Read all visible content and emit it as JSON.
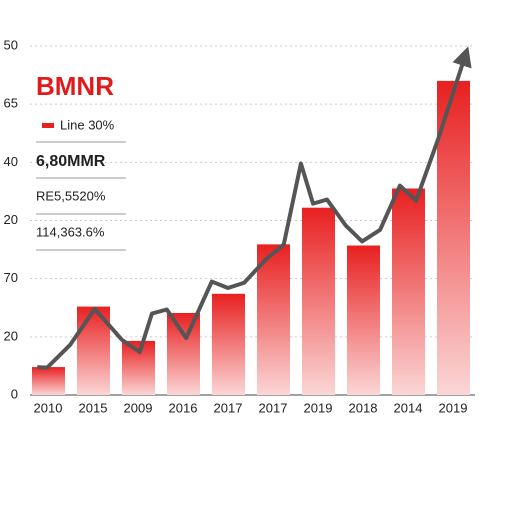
{
  "chart_data": {
    "type": "bar",
    "title": "BMNR",
    "categories": [
      "2010",
      "2015",
      "2009",
      "2016",
      "2017",
      "2017",
      "2019",
      "2018",
      "2014",
      "2019"
    ],
    "series": [
      {
        "name": "Line 30%",
        "color": "#e82020",
        "values": [
          4.8,
          15.2,
          9.3,
          14.1,
          17.4,
          25.9,
          32.2,
          25.7,
          35.5,
          54
        ]
      }
    ],
    "line": {
      "color": "#555555",
      "x": [
        -0.24,
        -0.02,
        0.49,
        1.04,
        1.64,
        2.04,
        2.31,
        2.64,
        3.07,
        3.64,
        4.0,
        4.36,
        4.84,
        5.24,
        5.62,
        5.89,
        6.2,
        6.62,
        6.98,
        7.38,
        7.82,
        8.18,
        8.67,
        9.27
      ],
      "values": [
        4.8,
        4.7,
        8.6,
        14.8,
        9.5,
        7.4,
        14.0,
        14.7,
        9.8,
        19.5,
        18.4,
        19.3,
        23.3,
        25.9,
        39.8,
        32.9,
        33.6,
        29.1,
        26.4,
        28.4,
        36.0,
        33.4,
        44.0,
        58.3
      ]
    },
    "annotations": [
      "6,80MMR",
      "RE5,5520%",
      "114,363.6%"
    ],
    "ylim": [
      0,
      60
    ],
    "yticks": [
      0,
      {
        "value": 10,
        "label": "20"
      },
      {
        "value": 20,
        "label": "70"
      },
      {
        "value": 30,
        "label": "20"
      },
      {
        "value": 40,
        "label": "40"
      },
      {
        "value": 50,
        "label": "65"
      },
      {
        "value": 60,
        "label": "50"
      }
    ],
    "grid": true
  }
}
